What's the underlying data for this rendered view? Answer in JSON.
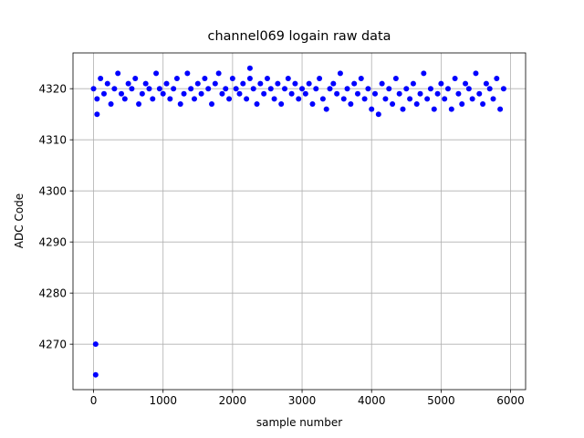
{
  "chart_data": {
    "type": "scatter",
    "title": "channel069 logain raw data",
    "x_label": "sample number",
    "y_label": "ADC Code",
    "color": "#0000ff",
    "grid": true,
    "xlim": [
      -296,
      6216
    ],
    "ylim": [
      4261.1,
      4327.0
    ],
    "xticks": [
      0,
      1000,
      2000,
      3000,
      4000,
      5000,
      6000
    ],
    "yticks": [
      4270,
      4280,
      4290,
      4300,
      4310,
      4320
    ],
    "x": [
      0,
      50,
      100,
      150,
      200,
      250,
      300,
      350,
      400,
      450,
      500,
      550,
      600,
      650,
      700,
      750,
      800,
      850,
      900,
      950,
      1000,
      1050,
      1100,
      1150,
      1200,
      1250,
      1300,
      1350,
      1400,
      1450,
      1500,
      1550,
      1600,
      1650,
      1700,
      1750,
      1800,
      1850,
      1900,
      1950,
      2000,
      2050,
      2100,
      2150,
      2200,
      2250,
      2300,
      2350,
      2400,
      2450,
      2500,
      2550,
      2600,
      2650,
      2700,
      2750,
      2800,
      2850,
      2900,
      2950,
      3000,
      3050,
      3100,
      3150,
      3200,
      3250,
      3300,
      3350,
      3400,
      3450,
      3500,
      3550,
      3600,
      3650,
      3700,
      3750,
      3800,
      3850,
      3900,
      3950,
      4000,
      4050,
      4100,
      4150,
      4200,
      4250,
      4300,
      4350,
      4400,
      4450,
      4500,
      4550,
      4600,
      4650,
      4700,
      4750,
      4800,
      4850,
      4900,
      4950,
      5000,
      5050,
      5100,
      5150,
      5200,
      5250,
      5300,
      5350,
      5400,
      5450,
      5500,
      5550,
      5600,
      5650,
      5700,
      5750,
      5800,
      5850,
      5900,
      30,
      30,
      50,
      2250
    ],
    "values": [
      4320,
      4318,
      4322,
      4319,
      4321,
      4317,
      4320,
      4323,
      4319,
      4318,
      4321,
      4320,
      4322,
      4317,
      4319,
      4321,
      4320,
      4318,
      4323,
      4320,
      4319,
      4321,
      4318,
      4320,
      4322,
      4317,
      4319,
      4323,
      4320,
      4318,
      4321,
      4319,
      4322,
      4320,
      4317,
      4321,
      4323,
      4319,
      4320,
      4318,
      4322,
      4320,
      4319,
      4321,
      4318,
      4322,
      4320,
      4317,
      4321,
      4319,
      4322,
      4320,
      4318,
      4321,
      4317,
      4320,
      4322,
      4319,
      4321,
      4318,
      4320,
      4319,
      4321,
      4317,
      4320,
      4322,
      4318,
      4316,
      4320,
      4321,
      4319,
      4323,
      4318,
      4320,
      4317,
      4321,
      4319,
      4322,
      4318,
      4320,
      4316,
      4319,
      4315,
      4321,
      4318,
      4320,
      4317,
      4322,
      4319,
      4316,
      4320,
      4318,
      4321,
      4317,
      4319,
      4323,
      4318,
      4320,
      4316,
      4319,
      4321,
      4318,
      4320,
      4316,
      4322,
      4319,
      4317,
      4321,
      4320,
      4318,
      4323,
      4319,
      4317,
      4321,
      4320,
      4318,
      4322,
      4316,
      4320,
      4270,
      4264,
      4315,
      4324
    ]
  }
}
